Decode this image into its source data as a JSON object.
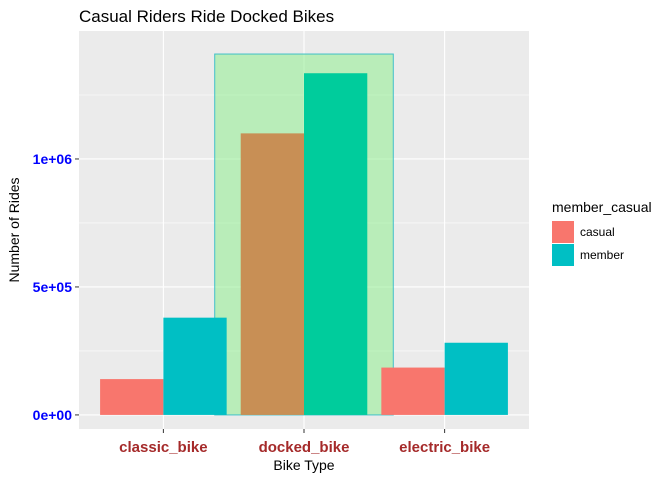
{
  "chart_data": {
    "type": "bar",
    "title": "Casual Riders Ride Docked Bikes",
    "xlabel": "Bike Type",
    "ylabel": "Number of Rides",
    "categories": [
      "classic_bike",
      "docked_bike",
      "electric_bike"
    ],
    "series": [
      {
        "name": "casual",
        "values": [
          140000,
          1100000,
          185000
        ],
        "color": "#F8766D"
      },
      {
        "name": "member",
        "values": [
          380000,
          1335000,
          282000
        ],
        "color": "#00BFC4"
      }
    ],
    "highlight": {
      "category": "docked_bike",
      "box_top_value": 1410000,
      "fill": "#90EE90",
      "stroke": "#40C0C8",
      "bar_colors": {
        "casual": "#C88F55",
        "member": "#00CC9C"
      }
    },
    "yticks": [
      0,
      500000,
      1000000
    ],
    "ytick_labels": [
      "0e+00",
      "5e+05",
      "1e+06"
    ],
    "ylim": [
      -55000,
      1500000
    ],
    "legend": {
      "title": "member_casual",
      "position": "right"
    },
    "grid": true,
    "panel_background": "#EBEBEB"
  }
}
